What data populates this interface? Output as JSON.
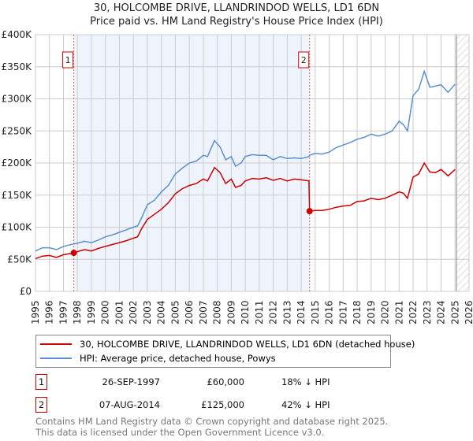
{
  "title_line1": "30, HOLCOMBE DRIVE, LLANDRINDOD WELLS, LD1 6DN",
  "title_line2": "Price paid vs. HM Land Registry's House Price Index (HPI)",
  "chart_data": {
    "type": "line",
    "title": "30, HOLCOMBE DRIVE, LLANDRINDOD WELLS, LD1 6DN — Price paid vs. HM Land Registry's House Price Index (HPI)",
    "xlabel": "",
    "ylabel": "",
    "xlim": [
      1995,
      2026
    ],
    "ylim": [
      0,
      400000
    ],
    "x_ticks": [
      "1995",
      "1996",
      "1997",
      "1998",
      "1999",
      "2000",
      "2001",
      "2002",
      "2003",
      "2004",
      "2005",
      "2006",
      "2007",
      "2008",
      "2009",
      "2010",
      "2011",
      "2012",
      "2013",
      "2014",
      "2015",
      "2016",
      "2017",
      "2018",
      "2019",
      "2020",
      "2021",
      "2022",
      "2023",
      "2024",
      "2025",
      "2026"
    ],
    "y_ticks": [
      {
        "v": 0,
        "label": "£0"
      },
      {
        "v": 50000,
        "label": "£50K"
      },
      {
        "v": 100000,
        "label": "£100K"
      },
      {
        "v": 150000,
        "label": "£150K"
      },
      {
        "v": 200000,
        "label": "£200K"
      },
      {
        "v": 250000,
        "label": "£250K"
      },
      {
        "v": 300000,
        "label": "£300K"
      },
      {
        "v": 350000,
        "label": "£350K"
      },
      {
        "v": 400000,
        "label": "£400K"
      }
    ],
    "grid": true,
    "legend_placement": "below",
    "series": [
      {
        "name": "30, HOLCOMBE DRIVE, LLANDRINDOD WELLS, LD1 6DN (detached house)",
        "color": "#cc0000",
        "x": [
          1995,
          1995.5,
          1996,
          1996.5,
          1997,
          1997.74,
          1998,
          1998.5,
          1999,
          1999.5,
          2000,
          2000.5,
          2001,
          2001.5,
          2002,
          2002.3,
          2002.6,
          2003,
          2003.5,
          2004,
          2004.5,
          2005,
          2005.5,
          2006,
          2006.5,
          2007,
          2007.3,
          2007.8,
          2008.2,
          2008.6,
          2009,
          2009.3,
          2009.7,
          2010,
          2010.5,
          2011,
          2011.5,
          2012,
          2012.5,
          2013,
          2013.5,
          2014,
          2014.55,
          2014.6,
          2015,
          2015.5,
          2016,
          2016.5,
          2017,
          2017.5,
          2018,
          2018.5,
          2019,
          2019.5,
          2020,
          2020.5,
          2021,
          2021.3,
          2021.6,
          2022,
          2022.4,
          2022.8,
          2023.2,
          2023.6,
          2024,
          2024.5,
          2025
        ],
        "y": [
          51000,
          55000,
          56000,
          53000,
          57000,
          60000,
          62000,
          65000,
          63000,
          67000,
          70000,
          73000,
          76000,
          79000,
          83000,
          85000,
          98000,
          112000,
          120000,
          128000,
          138000,
          152000,
          160000,
          165000,
          168000,
          175000,
          172000,
          193000,
          185000,
          168000,
          175000,
          162000,
          165000,
          172000,
          176000,
          175000,
          177000,
          173000,
          176000,
          172000,
          175000,
          174000,
          172000,
          125000,
          126000,
          126000,
          128000,
          131000,
          133000,
          134000,
          140000,
          141000,
          145000,
          143000,
          145000,
          150000,
          155000,
          153000,
          145000,
          178000,
          183000,
          200000,
          186000,
          185000,
          190000,
          180000,
          190000
        ]
      },
      {
        "name": "HPI: Average price, detached house, Powys",
        "color": "#5b8fd0",
        "x": [
          1995,
          1995.5,
          1996,
          1996.5,
          1997,
          1997.74,
          1998,
          1998.5,
          1999,
          1999.5,
          2000,
          2000.5,
          2001,
          2001.5,
          2002,
          2002.3,
          2002.6,
          2003,
          2003.5,
          2004,
          2004.5,
          2005,
          2005.5,
          2006,
          2006.5,
          2007,
          2007.3,
          2007.8,
          2008.2,
          2008.6,
          2009,
          2009.3,
          2009.7,
          2010,
          2010.5,
          2011,
          2011.5,
          2012,
          2012.5,
          2013,
          2013.5,
          2014,
          2014.55,
          2014.6,
          2015,
          2015.5,
          2016,
          2016.5,
          2017,
          2017.5,
          2018,
          2018.5,
          2019,
          2019.5,
          2020,
          2020.5,
          2021,
          2021.3,
          2021.6,
          2022,
          2022.4,
          2022.8,
          2023.2,
          2023.6,
          2024,
          2024.5,
          2025
        ],
        "y": [
          63000,
          68000,
          68000,
          65000,
          70000,
          74000,
          75000,
          78000,
          76000,
          80000,
          85000,
          88000,
          92000,
          96000,
          100000,
          102000,
          115000,
          135000,
          142000,
          155000,
          165000,
          183000,
          192000,
          200000,
          203000,
          212000,
          210000,
          235000,
          225000,
          205000,
          210000,
          195000,
          200000,
          210000,
          213000,
          212000,
          212000,
          205000,
          210000,
          207000,
          208000,
          207000,
          210000,
          212000,
          215000,
          214000,
          217000,
          224000,
          228000,
          232000,
          237000,
          240000,
          245000,
          242000,
          245000,
          250000,
          265000,
          260000,
          250000,
          305000,
          315000,
          343000,
          318000,
          320000,
          322000,
          310000,
          323000
        ]
      }
    ],
    "annotations": [
      {
        "label": "1",
        "x": 1997.74,
        "price": 60000
      },
      {
        "label": "2",
        "x": 2014.6,
        "price": 125000
      }
    ],
    "shaded_range": [
      1997.74,
      2014.6
    ],
    "hatched_from": 2025.1
  },
  "legend": {
    "property": "30, HOLCOMBE DRIVE, LLANDRINDOD WELLS, LD1 6DN (detached house)",
    "hpi": "HPI: Average price, detached house, Powys"
  },
  "sales": [
    {
      "num": "1",
      "date": "26-SEP-1997",
      "price": "£60,000",
      "delta": "18% ↓ HPI"
    },
    {
      "num": "2",
      "date": "07-AUG-2014",
      "price": "£125,000",
      "delta": "42% ↓ HPI"
    }
  ],
  "footer": {
    "line1": "Contains HM Land Registry data © Crown copyright and database right 2025.",
    "line2": "This data is licensed under the Open Government Licence v3.0."
  },
  "colors": {
    "property": "#cc0000",
    "hpi": "#5b8fd0",
    "shade": "#eef3fc"
  }
}
